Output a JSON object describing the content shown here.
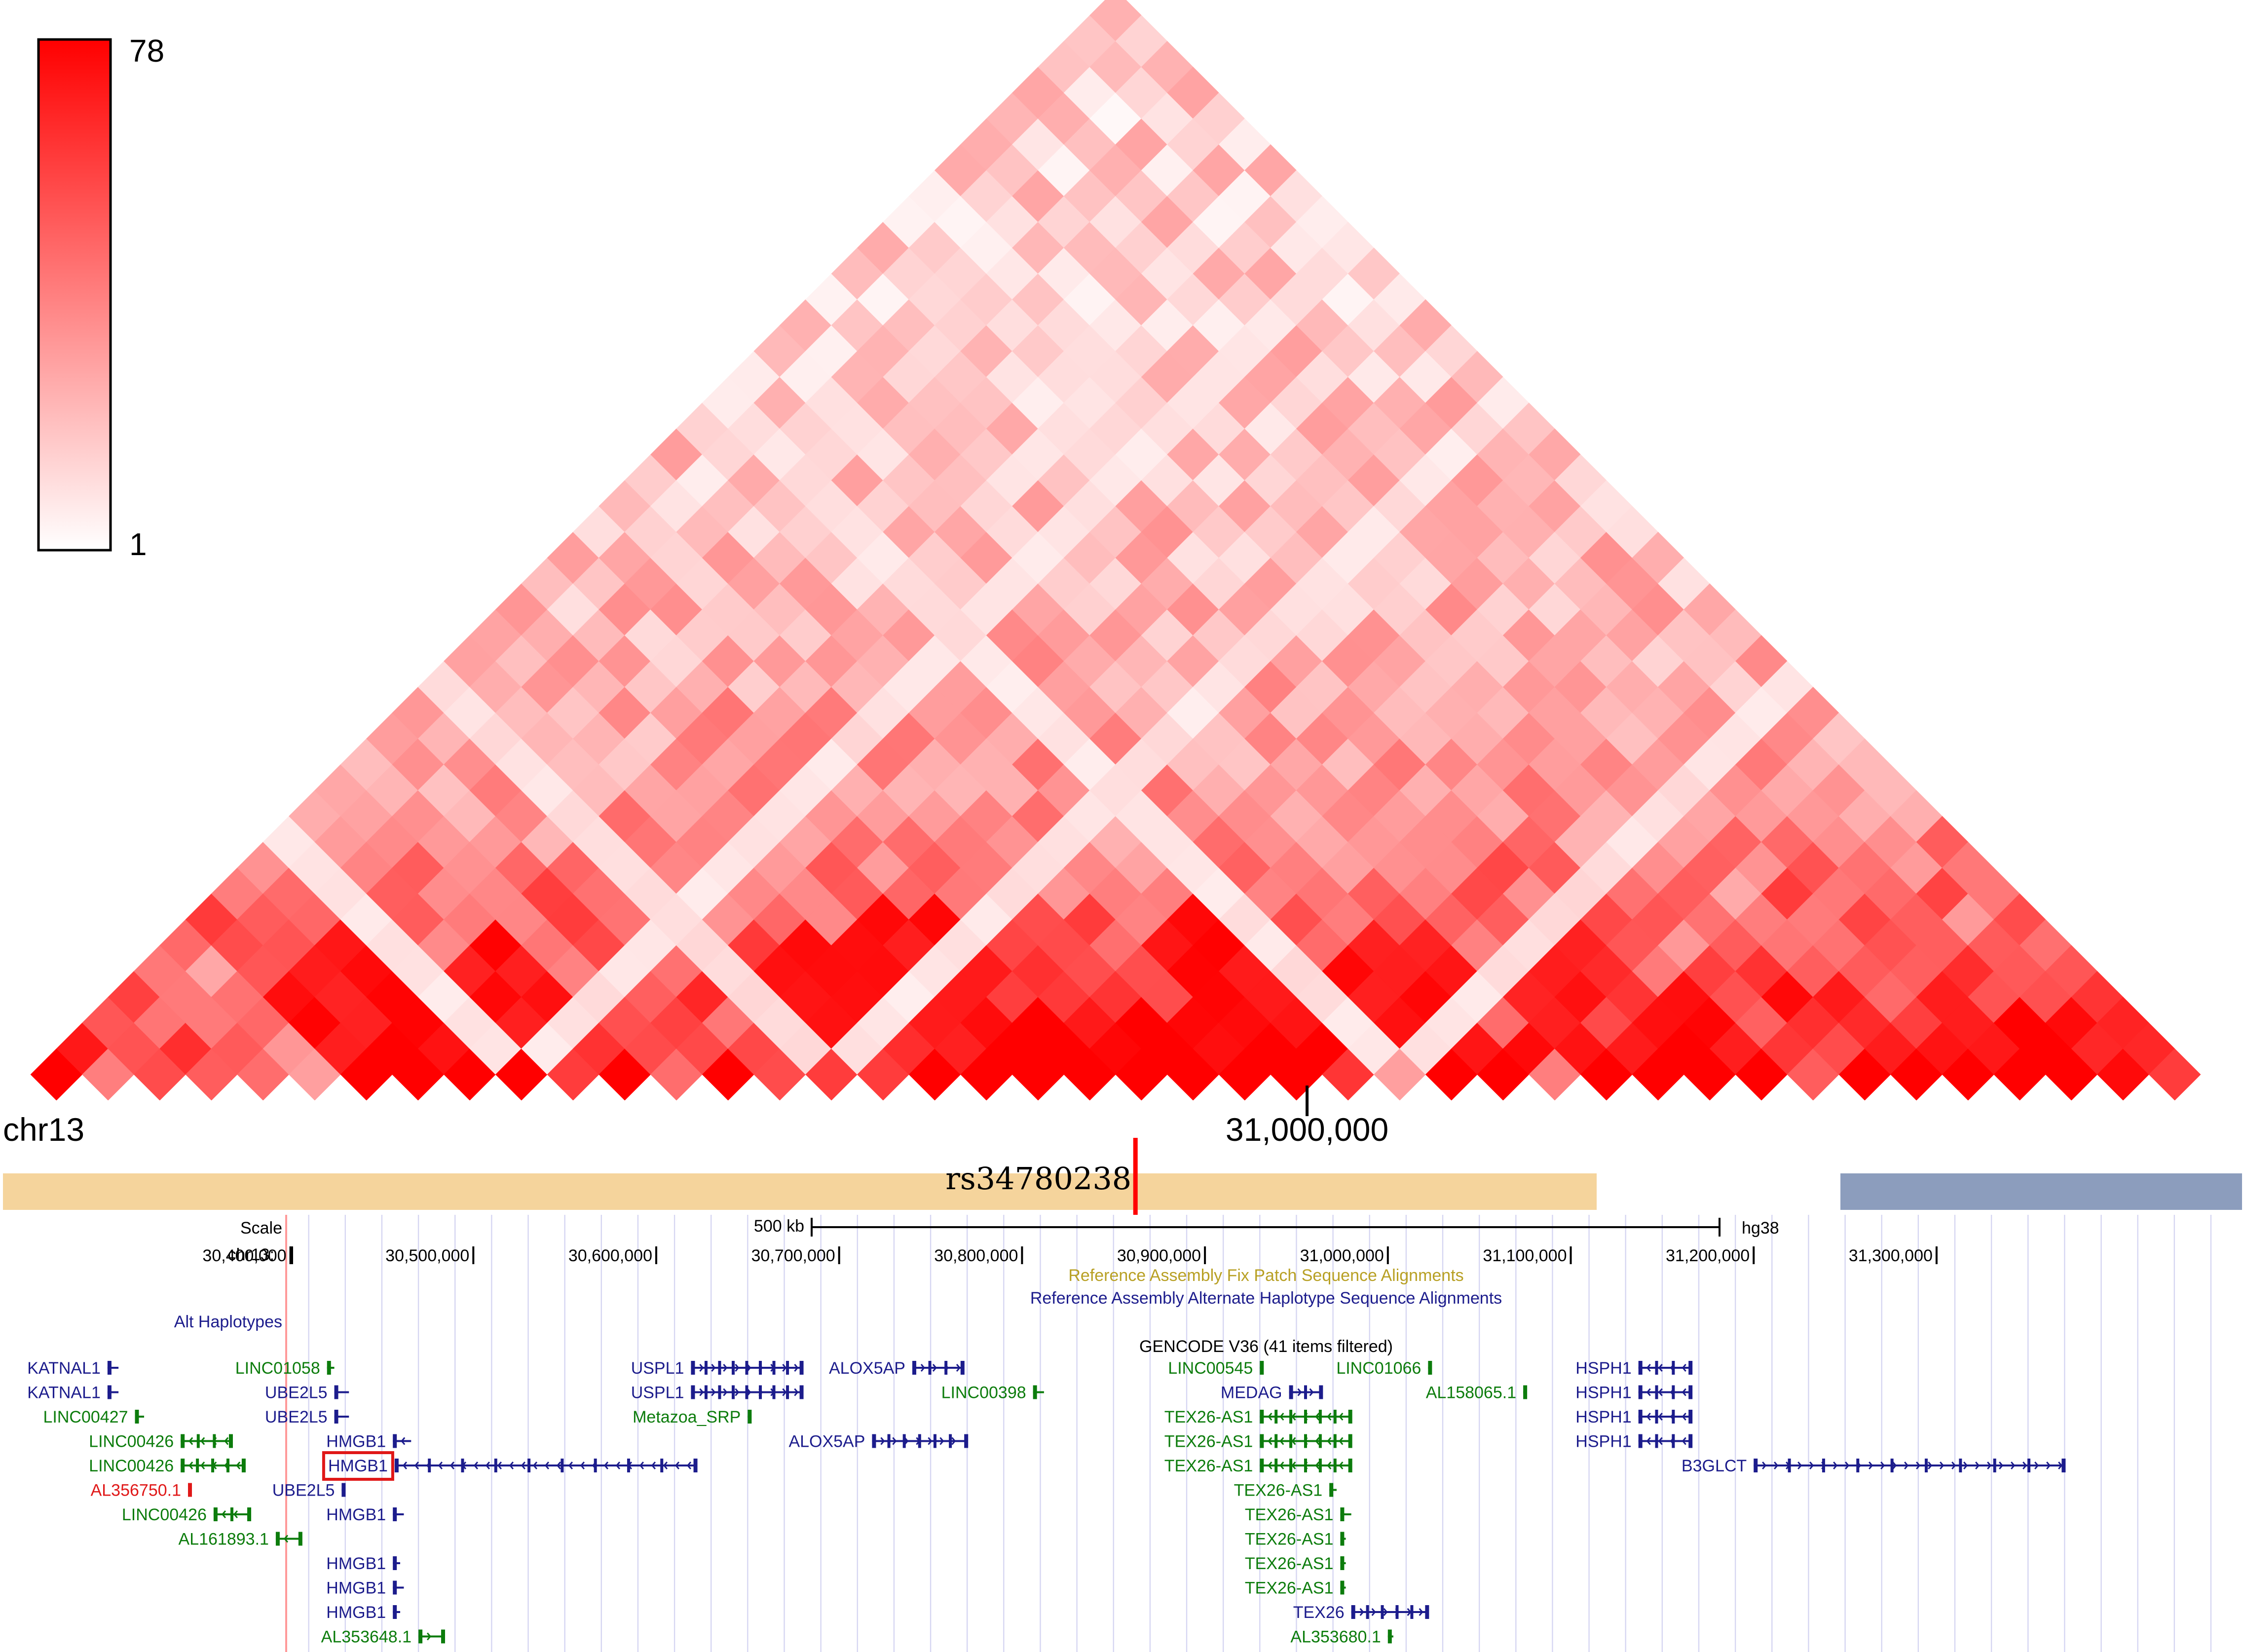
{
  "chart_data": {
    "type": "heatmap",
    "title": "",
    "colorbar": {
      "max_label": "78",
      "min_label": "1",
      "max": 78,
      "min": 1,
      "low_color": "#ffffff",
      "high_color": "#ff0000"
    },
    "chrom_label": "chr13",
    "axis_tick": {
      "label": "31,000,000",
      "pos": 31000000
    },
    "bins": 42,
    "region": {
      "start": 30300000,
      "end": 31490000
    },
    "diagonal_values": [
      78,
      40,
      55,
      50,
      45,
      30,
      78,
      78,
      78,
      78,
      60,
      78,
      45,
      78,
      55,
      60,
      60,
      78,
      78,
      78,
      78,
      78,
      78,
      78,
      78,
      62,
      30,
      78,
      78,
      40,
      78,
      78,
      78,
      78,
      50,
      78,
      78,
      78,
      78,
      78,
      75,
      60
    ],
    "snp": {
      "label": "rs34780238",
      "pos": 30862000
    }
  },
  "tracks": {
    "tad_bar_color": "#f5d49c",
    "tad2_bar_color": "#8c9dbd",
    "snp_color": "#ff0000",
    "scale_label": "Scale",
    "scale_bar_label": "500 kb",
    "assembly_label": "hg38",
    "chr_label": "chr13:",
    "ruler_ticks": [
      {
        "label": "30,400,000",
        "pos": 30400000
      },
      {
        "label": "30,500,000",
        "pos": 30500000
      },
      {
        "label": "30,600,000",
        "pos": 30600000
      },
      {
        "label": "30,700,000",
        "pos": 30700000
      },
      {
        "label": "30,800,000",
        "pos": 30800000
      },
      {
        "label": "30,900,000",
        "pos": 30900000
      },
      {
        "label": "31,000,000",
        "pos": 31000000
      },
      {
        "label": "31,100,000",
        "pos": 31100000
      },
      {
        "label": "31,200,000",
        "pos": 31200000
      },
      {
        "label": "31,300,000",
        "pos": 31300000
      }
    ],
    "fix_patch_label": "Reference Assembly Fix Patch Sequence Alignments",
    "alt_hap_label": "Reference Assembly Alternate Haplotype Sequence Alignments",
    "alt_haplotypes_label": "Alt Haplotypes",
    "gencode_label": "GENCODE V36 (41 items filtered)",
    "highlight_gene": "HMGB1",
    "genes": [
      {
        "name": "KATNAL1",
        "start": 30300000,
        "end": 30306000,
        "row": 0,
        "color": "#1c1c8c",
        "strand": "-"
      },
      {
        "name": "KATNAL1",
        "start": 30300000,
        "end": 30306000,
        "row": 1,
        "color": "#1c1c8c",
        "strand": "-"
      },
      {
        "name": "LINC00427",
        "start": 30315000,
        "end": 30320000,
        "row": 2,
        "color": "#0c7c0c",
        "strand": "+"
      },
      {
        "name": "LINC00426",
        "start": 30340000,
        "end": 30368000,
        "row": 3,
        "color": "#0c7c0c",
        "strand": "-"
      },
      {
        "name": "LINC00426",
        "start": 30340000,
        "end": 30375000,
        "row": 4,
        "color": "#0c7c0c",
        "strand": "-"
      },
      {
        "name": "AL356750.1",
        "start": 30344000,
        "end": 30346000,
        "row": 5,
        "color": "#e01818",
        "strand": "+"
      },
      {
        "name": "LINC00426",
        "start": 30358000,
        "end": 30378000,
        "row": 6,
        "color": "#0c7c0c",
        "strand": "-"
      },
      {
        "name": "AL161893.1",
        "start": 30392000,
        "end": 30406000,
        "row": 7,
        "color": "#0c7c0c",
        "strand": "-"
      },
      {
        "name": "LINC01058",
        "start": 30420000,
        "end": 30424000,
        "row": 0,
        "color": "#0c7c0c",
        "strand": "+"
      },
      {
        "name": "UBE2L5",
        "start": 30424000,
        "end": 30432000,
        "row": 1,
        "color": "#1c1c8c",
        "strand": "-"
      },
      {
        "name": "UBE2L5",
        "start": 30424000,
        "end": 30432000,
        "row": 2,
        "color": "#1c1c8c",
        "strand": "-"
      },
      {
        "name": "HMGB1",
        "start": 30456000,
        "end": 30466000,
        "row": 3,
        "color": "#1c1c8c",
        "strand": "-"
      },
      {
        "name": "HMGB1",
        "start": 30457000,
        "end": 30622000,
        "row": 4,
        "color": "#1c1c8c",
        "strand": "-"
      },
      {
        "name": "UBE2L5",
        "start": 30428000,
        "end": 30430000,
        "row": 5,
        "color": "#1c1c8c",
        "strand": "-"
      },
      {
        "name": "HMGB1",
        "start": 30456000,
        "end": 30462000,
        "row": 6,
        "color": "#1c1c8c",
        "strand": "-"
      },
      {
        "name": "HMGB1",
        "start": 30456000,
        "end": 30460000,
        "row": 8,
        "color": "#1c1c8c",
        "strand": "-"
      },
      {
        "name": "HMGB1",
        "start": 30456000,
        "end": 30462000,
        "row": 9,
        "color": "#1c1c8c",
        "strand": "-"
      },
      {
        "name": "HMGB1",
        "start": 30456000,
        "end": 30460000,
        "row": 10,
        "color": "#1c1c8c",
        "strand": "-"
      },
      {
        "name": "AL353648.1",
        "start": 30470000,
        "end": 30484000,
        "row": 11,
        "color": "#0c7c0c",
        "strand": "+"
      },
      {
        "name": "USPL1",
        "start": 30619000,
        "end": 30680000,
        "row": 0,
        "color": "#1c1c8c",
        "strand": "+"
      },
      {
        "name": "USPL1",
        "start": 30619000,
        "end": 30680000,
        "row": 1,
        "color": "#1c1c8c",
        "strand": "+"
      },
      {
        "name": "Metazoa_SRP",
        "start": 30650000,
        "end": 30652000,
        "row": 2,
        "color": "#0c7c0c",
        "strand": "+"
      },
      {
        "name": "ALOX5AP",
        "start": 30740000,
        "end": 30768000,
        "row": 0,
        "color": "#1c1c8c",
        "strand": "+"
      },
      {
        "name": "ALOX5AP",
        "start": 30718000,
        "end": 30770000,
        "row": 3,
        "color": "#1c1c8c",
        "strand": "+"
      },
      {
        "name": "LINC00398",
        "start": 30806000,
        "end": 30812000,
        "row": 1,
        "color": "#0c7c0c",
        "strand": "+"
      },
      {
        "name": "LINC00545",
        "start": 30930000,
        "end": 30932000,
        "row": 0,
        "color": "#0c7c0c",
        "strand": "+"
      },
      {
        "name": "MEDAG",
        "start": 30946000,
        "end": 30964000,
        "row": 1,
        "color": "#1c1c8c",
        "strand": "+"
      },
      {
        "name": "TEX26-AS1",
        "start": 30930000,
        "end": 30980000,
        "row": 2,
        "color": "#0c7c0c",
        "strand": "-"
      },
      {
        "name": "TEX26-AS1",
        "start": 30930000,
        "end": 30980000,
        "row": 3,
        "color": "#0c7c0c",
        "strand": "-"
      },
      {
        "name": "TEX26-AS1",
        "start": 30930000,
        "end": 30980000,
        "row": 4,
        "color": "#0c7c0c",
        "strand": "-"
      },
      {
        "name": "TEX26-AS1",
        "start": 30968000,
        "end": 30972000,
        "row": 5,
        "color": "#0c7c0c",
        "strand": "+"
      },
      {
        "name": "TEX26-AS1",
        "start": 30974000,
        "end": 30980000,
        "row": 6,
        "color": "#0c7c0c",
        "strand": "+"
      },
      {
        "name": "TEX26-AS1",
        "start": 30974000,
        "end": 30977000,
        "row": 7,
        "color": "#0c7c0c",
        "strand": "+"
      },
      {
        "name": "TEX26-AS1",
        "start": 30974000,
        "end": 30977000,
        "row": 8,
        "color": "#0c7c0c",
        "strand": "+"
      },
      {
        "name": "TEX26-AS1",
        "start": 30974000,
        "end": 30977000,
        "row": 9,
        "color": "#0c7c0c",
        "strand": "+"
      },
      {
        "name": "TEX26",
        "start": 30980000,
        "end": 31022000,
        "row": 10,
        "color": "#1c1c8c",
        "strand": "+"
      },
      {
        "name": "AL353680.1",
        "start": 31000000,
        "end": 31003000,
        "row": 11,
        "color": "#0c7c0c",
        "strand": "+"
      },
      {
        "name": "LINC01066",
        "start": 31022000,
        "end": 31024000,
        "row": 0,
        "color": "#0c7c0c",
        "strand": "+"
      },
      {
        "name": "AL158065.1",
        "start": 31074000,
        "end": 31076000,
        "row": 1,
        "color": "#0c7c0c",
        "strand": "+"
      },
      {
        "name": "HSPH1",
        "start": 31137000,
        "end": 31166000,
        "row": 0,
        "color": "#1c1c8c",
        "strand": "-"
      },
      {
        "name": "HSPH1",
        "start": 31137000,
        "end": 31166000,
        "row": 1,
        "color": "#1c1c8c",
        "strand": "-"
      },
      {
        "name": "HSPH1",
        "start": 31137000,
        "end": 31166000,
        "row": 2,
        "color": "#1c1c8c",
        "strand": "-"
      },
      {
        "name": "HSPH1",
        "start": 31137000,
        "end": 31166000,
        "row": 3,
        "color": "#1c1c8c",
        "strand": "-"
      },
      {
        "name": "B3GLCT",
        "start": 31200000,
        "end": 31370000,
        "row": 4,
        "color": "#1c1c8c",
        "strand": "+"
      }
    ]
  }
}
